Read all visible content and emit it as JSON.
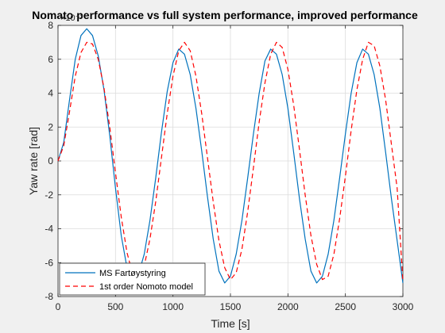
{
  "chart_data": {
    "type": "line",
    "title": "Nomato performance vs full system performance, improved performance",
    "xlabel": "Time [s]",
    "ylabel": "Yaw rate [rad]",
    "exponent_label": "×10⁻³",
    "xlim": [
      0,
      3000
    ],
    "ylim": [
      -8,
      8
    ],
    "xticks": [
      0,
      500,
      1000,
      1500,
      2000,
      2500,
      3000
    ],
    "xtick_labels": [
      "0",
      "500",
      "1000",
      "1500",
      "2000",
      "2500",
      "3000"
    ],
    "yticks": [
      -8,
      -6,
      -4,
      -2,
      0,
      2,
      4,
      6,
      8
    ],
    "ytick_labels": [
      "-8",
      "-6",
      "-4",
      "-2",
      "0",
      "2",
      "4",
      "6",
      "8"
    ],
    "grid": true,
    "legend_position": "bottom-left",
    "series": [
      {
        "name": "MS Fartøystyring",
        "color": "#0072bd",
        "style": "solid",
        "x": [
          0,
          50,
          100,
          150,
          200,
          250,
          300,
          350,
          400,
          450,
          500,
          550,
          600,
          650,
          700,
          750,
          800,
          850,
          900,
          950,
          1000,
          1050,
          1100,
          1150,
          1200,
          1250,
          1300,
          1350,
          1400,
          1450,
          1500,
          1550,
          1600,
          1650,
          1700,
          1750,
          1800,
          1850,
          1900,
          1950,
          2000,
          2050,
          2100,
          2150,
          2200,
          2250,
          2300,
          2350,
          2400,
          2450,
          2500,
          2550,
          2600,
          2650,
          2700,
          2750,
          2800,
          2850,
          2900,
          2950,
          3000
        ],
        "y": [
          0,
          1.1,
          3.6,
          6.0,
          7.4,
          7.8,
          7.4,
          6.2,
          4.2,
          1.5,
          -1.6,
          -4.4,
          -6.3,
          -7.0,
          -6.7,
          -5.5,
          -3.5,
          -1.0,
          1.7,
          4.1,
          5.8,
          6.6,
          6.3,
          5.1,
          3.1,
          0.6,
          -2.1,
          -4.6,
          -6.5,
          -7.2,
          -6.8,
          -5.5,
          -3.5,
          -1.0,
          1.6,
          4.0,
          5.9,
          6.6,
          6.3,
          5.1,
          3.1,
          0.5,
          -2.2,
          -4.6,
          -6.5,
          -7.2,
          -6.8,
          -5.5,
          -3.5,
          -1.0,
          1.6,
          4.0,
          5.8,
          6.6,
          6.3,
          5.1,
          3.1,
          0.5,
          -2.2,
          -4.7,
          -7.2
        ]
      },
      {
        "name": "1st order Nomoto model",
        "color": "#ff0000",
        "style": "dashed",
        "x": [
          0,
          50,
          100,
          150,
          200,
          250,
          300,
          350,
          400,
          450,
          500,
          550,
          600,
          650,
          700,
          750,
          800,
          850,
          900,
          950,
          1000,
          1050,
          1100,
          1150,
          1200,
          1250,
          1300,
          1350,
          1400,
          1450,
          1500,
          1550,
          1600,
          1650,
          1700,
          1750,
          1800,
          1850,
          1900,
          1950,
          2000,
          2050,
          2100,
          2150,
          2200,
          2250,
          2300,
          2350,
          2400,
          2450,
          2500,
          2550,
          2600,
          2650,
          2700,
          2750,
          2800,
          2850,
          2900,
          2950,
          3000
        ],
        "y": [
          0,
          0.9,
          2.9,
          5.0,
          6.4,
          7.0,
          6.9,
          6.0,
          4.3,
          2.0,
          -0.7,
          -3.3,
          -5.4,
          -6.7,
          -6.9,
          -6.2,
          -4.6,
          -2.4,
          0.2,
          2.8,
          5.0,
          6.5,
          7.0,
          6.5,
          5.0,
          2.8,
          0.2,
          -2.4,
          -4.7,
          -6.3,
          -7.0,
          -6.6,
          -5.2,
          -3.0,
          -0.4,
          2.3,
          4.6,
          6.3,
          7.0,
          6.7,
          5.4,
          3.3,
          0.7,
          -2.0,
          -4.4,
          -6.1,
          -7.0,
          -6.8,
          -5.5,
          -3.4,
          -0.9,
          1.8,
          4.2,
          6.0,
          7.0,
          6.8,
          5.6,
          3.6,
          1.0,
          -1.6,
          -7.1
        ]
      }
    ]
  }
}
